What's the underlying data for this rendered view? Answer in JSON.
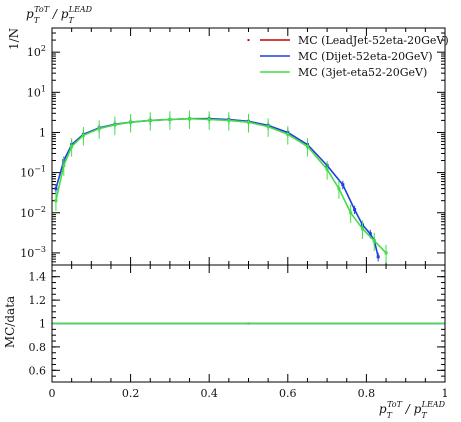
{
  "chart_data": {
    "type": "line",
    "title": "",
    "top_left_label": {
      "base": "p",
      "sup": "ToT",
      "sub": "T",
      "sep": " / ",
      "base2": "p",
      "sup2": "LEAD",
      "sub2": "T"
    },
    "xlabel": {
      "base": "p",
      "sup": "ToT",
      "sub": "T",
      "sep": " / ",
      "base2": "p",
      "sup2": "LEAD",
      "sub2": "T"
    },
    "main_ylabel": "1/N",
    "ratio_ylabel": "MC/data",
    "x_range": [
      0,
      1
    ],
    "main_y_log": true,
    "main_y_range": [
      0.0005,
      400
    ],
    "ratio_y_range": [
      0.5,
      1.5
    ],
    "x_ticks": [
      "0",
      "0.2",
      "0.4",
      "0.6",
      "0.8",
      "1"
    ],
    "x_tick_values": [
      0,
      0.2,
      0.4,
      0.6,
      0.8,
      1
    ],
    "main_y_ticks": [
      {
        "value": 100,
        "mantissa": "10",
        "exp": "2"
      },
      {
        "value": 10,
        "mantissa": "10",
        "exp": "1"
      },
      {
        "value": 1,
        "mantissa": "1",
        "exp": ""
      },
      {
        "value": 0.1,
        "mantissa": "10",
        "exp": "−1"
      },
      {
        "value": 0.01,
        "mantissa": "10",
        "exp": "−2"
      },
      {
        "value": 0.001,
        "mantissa": "10",
        "exp": "−3"
      }
    ],
    "ratio_y_ticks": [
      "0.6",
      "0.8",
      "1",
      "1.2",
      "1.4"
    ],
    "ratio_y_tick_values": [
      0.6,
      0.8,
      1.0,
      1.2,
      1.4
    ],
    "legend_position": "top-right",
    "series": [
      {
        "name": "MC (LeadJet-52eta-20GeV)",
        "color": "#cc0000",
        "x": [
          0.5
        ],
        "y": [
          200
        ],
        "ratio_x": [
          0.5
        ],
        "ratio_y": [
          1.0
        ]
      },
      {
        "name": "MC (Dijet-52eta-20GeV)",
        "color": "#1f3fe0",
        "x": [
          0.01,
          0.03,
          0.05,
          0.08,
          0.12,
          0.16,
          0.2,
          0.25,
          0.3,
          0.35,
          0.4,
          0.45,
          0.5,
          0.55,
          0.6,
          0.65,
          0.7,
          0.74,
          0.77,
          0.79,
          0.81,
          0.82,
          0.83
        ],
        "y": [
          0.04,
          0.2,
          0.5,
          0.9,
          1.3,
          1.6,
          1.8,
          2.0,
          2.1,
          2.2,
          2.2,
          2.1,
          1.9,
          1.5,
          1.0,
          0.5,
          0.15,
          0.05,
          0.012,
          0.005,
          0.003,
          0.002,
          0.0008
        ],
        "ratio_x": [
          0,
          1
        ],
        "ratio_y": [
          1.0,
          1.0
        ]
      },
      {
        "name": "MC (3jet-eta52-20GeV)",
        "color": "#44dd44",
        "x": [
          0.01,
          0.03,
          0.05,
          0.08,
          0.12,
          0.16,
          0.2,
          0.25,
          0.3,
          0.35,
          0.4,
          0.45,
          0.5,
          0.55,
          0.6,
          0.65,
          0.7,
          0.73,
          0.76,
          0.79,
          0.82,
          0.85
        ],
        "y": [
          0.02,
          0.15,
          0.45,
          0.85,
          1.25,
          1.55,
          1.8,
          2.0,
          2.1,
          2.2,
          2.1,
          2.0,
          1.8,
          1.4,
          0.9,
          0.45,
          0.12,
          0.04,
          0.01,
          0.004,
          0.002,
          0.001
        ],
        "ratio_x": [
          0,
          1
        ],
        "ratio_y": [
          1.0,
          1.0
        ]
      }
    ]
  }
}
